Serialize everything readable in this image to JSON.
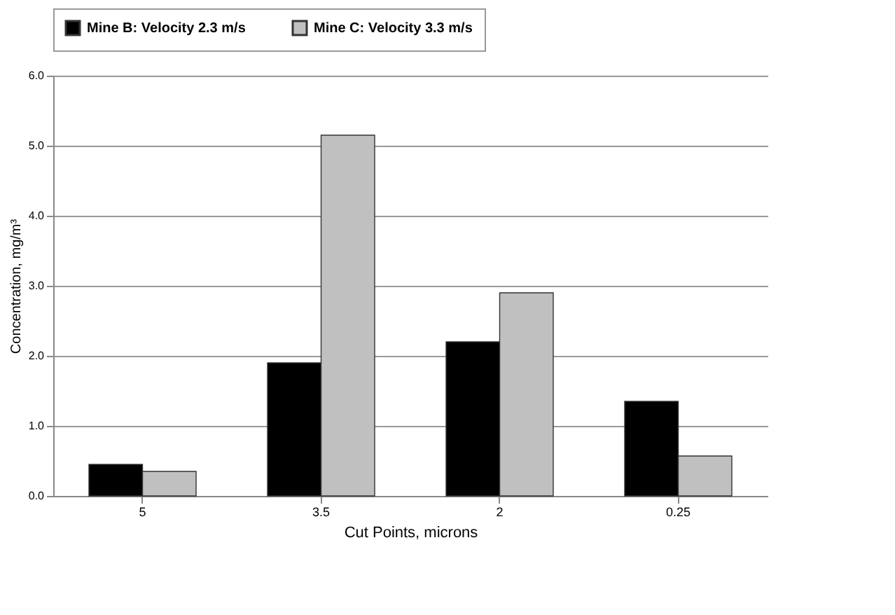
{
  "chart_data": {
    "type": "bar",
    "xlabel": "Cut Points, microns",
    "ylabel": "Concentration, mg/m³",
    "categories": [
      "5",
      "3.5",
      "2",
      "0.25"
    ],
    "series": [
      {
        "name": "Mine B: Velocity 2.3 m/s",
        "color": "#000000",
        "values": [
          0.45,
          1.9,
          2.2,
          1.35
        ]
      },
      {
        "name": "Mine C: Velocity 3.3 m/s",
        "color": "#c0c0c0",
        "values": [
          0.35,
          5.15,
          2.9,
          0.57
        ]
      }
    ],
    "ylim": [
      0,
      6
    ],
    "yticks": [
      {
        "value": 0,
        "label": "0.0"
      },
      {
        "value": 1,
        "label": "1.0"
      },
      {
        "value": 2,
        "label": "2.0"
      },
      {
        "value": 3,
        "label": "3.0"
      },
      {
        "value": 4,
        "label": "4.0"
      },
      {
        "value": 5,
        "label": "5.0"
      },
      {
        "value": 6,
        "label": "6.0"
      }
    ],
    "grid": "y",
    "legend": "top"
  }
}
